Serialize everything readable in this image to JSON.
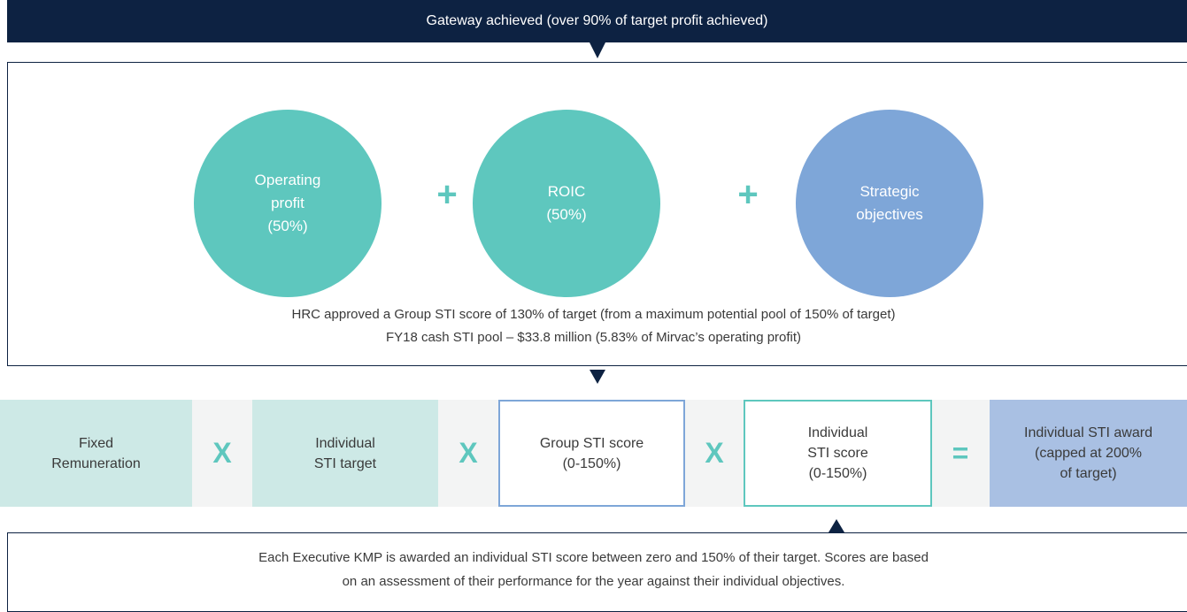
{
  "header": {
    "title": "Gateway achieved (over 90% of target profit achieved)"
  },
  "panel": {
    "circles": [
      {
        "lines": [
          "Operating",
          "profit",
          "(50%)"
        ]
      },
      {
        "lines": [
          "ROIC",
          "(50%)"
        ]
      },
      {
        "lines": [
          "Strategic",
          "objectives"
        ]
      }
    ],
    "operators": [
      "+",
      "+"
    ],
    "notes": [
      "HRC approved a Group STI score of 130% of target (from a maximum potential pool of 150% of target)",
      "FY18 cash STI pool – $33.8 million (5.83% of Mirvac’s operating profit)"
    ]
  },
  "formula": {
    "items": [
      {
        "lines": [
          "Fixed",
          "Remuneration"
        ]
      },
      {
        "lines": [
          "Individual",
          "STI target"
        ]
      },
      {
        "lines": [
          "Group STI score",
          "(0-150%)"
        ]
      },
      {
        "lines": [
          "Individual",
          "STI score",
          "(0-150%)"
        ]
      },
      {
        "lines": [
          "Individual STI award",
          "(capped at 200%",
          "of target)"
        ]
      }
    ],
    "operators": [
      "X",
      "X",
      "X",
      "="
    ]
  },
  "footer": {
    "lines": [
      "Each Executive KMP is awarded an individual STI score between zero and 150% of their target. Scores are based",
      "on an assessment of their performance for the year against their individual objectives."
    ]
  }
}
